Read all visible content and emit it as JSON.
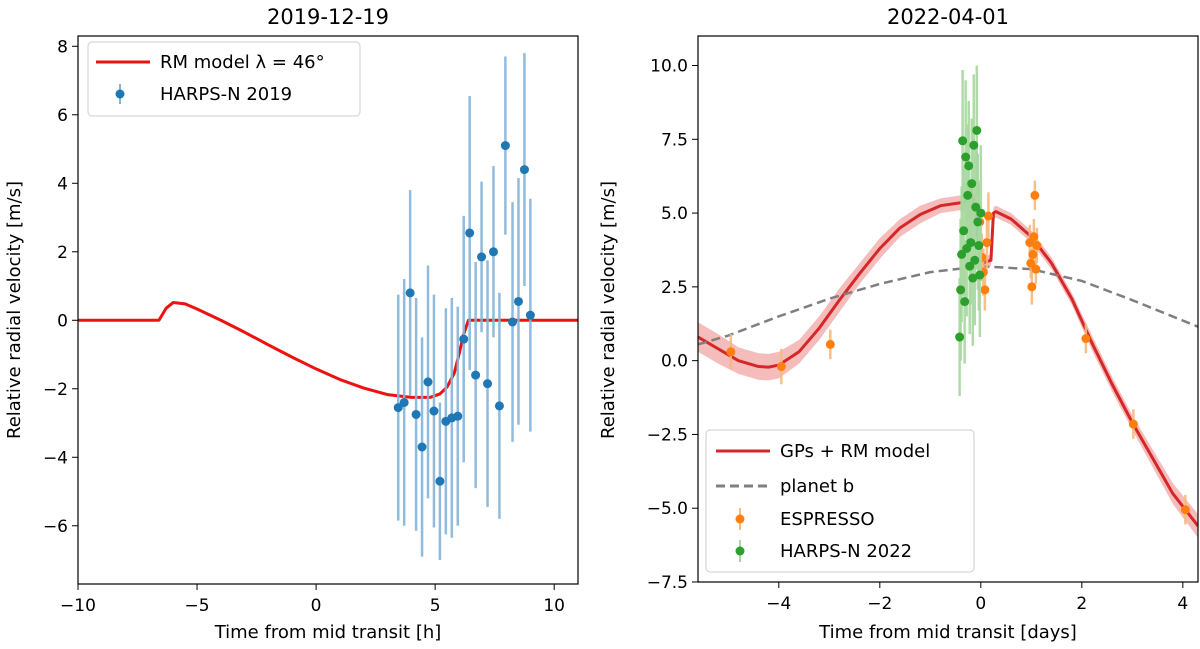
{
  "chart_data": [
    {
      "type": "scatter",
      "title": "2019-12-19",
      "xlabel": "Time from mid transit [h]",
      "ylabel": "Relative radial velocity [m/s]",
      "xlim": [
        -10,
        11
      ],
      "ylim": [
        -7.7,
        8.3
      ],
      "xticks": [
        -10,
        -5,
        0,
        5,
        10
      ],
      "yticks": [
        -6,
        -4,
        -2,
        0,
        2,
        4,
        6,
        8
      ],
      "grid": false,
      "legend_position": "top-left",
      "legend": [
        {
          "label": "RM model λ = 46°",
          "kind": "line",
          "color": "#ee1111"
        },
        {
          "label": "HARPS-N 2019",
          "kind": "errorbar",
          "color": "#1f77b4"
        }
      ],
      "series": [
        {
          "name": "RM model λ = 46°",
          "kind": "line",
          "color": "#ee1111",
          "x": [
            -10,
            -6.6,
            -6.3,
            -6.0,
            -5.5,
            -5.0,
            -4.0,
            -3.0,
            -2.0,
            -1.0,
            0.0,
            1.0,
            2.0,
            3.0,
            4.0,
            4.8,
            5.2,
            5.5,
            5.8,
            6.0,
            6.2,
            6.4,
            6.6,
            11
          ],
          "y": [
            0,
            0,
            0.35,
            0.52,
            0.48,
            0.33,
            0.0,
            -0.35,
            -0.72,
            -1.08,
            -1.42,
            -1.73,
            -1.98,
            -2.17,
            -2.25,
            -2.25,
            -2.15,
            -1.95,
            -1.55,
            -1.0,
            -0.4,
            0.0,
            0.0,
            0
          ]
        },
        {
          "name": "HARPS-N 2019",
          "kind": "errorbar",
          "color": "#1f77b4",
          "errcolor": "#86b4d9",
          "x": [
            3.45,
            3.7,
            3.95,
            4.2,
            4.45,
            4.7,
            4.95,
            5.2,
            5.45,
            5.7,
            5.95,
            6.2,
            6.45,
            6.7,
            6.95,
            7.2,
            7.45,
            7.7,
            7.95,
            8.25,
            8.5,
            8.75,
            9.0
          ],
          "y": [
            -2.55,
            -2.4,
            0.8,
            -2.75,
            -3.7,
            -1.8,
            -2.65,
            -4.7,
            -2.95,
            -2.85,
            -2.8,
            -0.55,
            2.55,
            -1.6,
            1.85,
            -1.85,
            2.0,
            -2.5,
            5.1,
            -0.05,
            0.55,
            4.4,
            0.15
          ],
          "err": [
            3.3,
            3.6,
            3.0,
            3.4,
            3.2,
            3.4,
            3.4,
            2.3,
            3.3,
            3.5,
            3.2,
            3.6,
            4.0,
            3.3,
            2.2,
            3.6,
            2.5,
            3.3,
            2.6,
            3.5,
            3.6,
            3.4,
            3.4
          ]
        }
      ]
    },
    {
      "type": "scatter",
      "title": "2022-04-01",
      "xlabel": "Time from mid transit [days]",
      "ylabel": "Relative radial velocity [m/s]",
      "xlim": [
        -5.6,
        4.3
      ],
      "ylim": [
        -7.5,
        11.0
      ],
      "xticks": [
        -4,
        -2,
        0,
        2,
        4
      ],
      "yticks": [
        -7.5,
        -5.0,
        -2.5,
        0.0,
        2.5,
        5.0,
        7.5,
        10.0
      ],
      "ytick_labels": [
        "−7.5",
        "−5.0",
        "−2.5",
        "0.0",
        "2.5",
        "5.0",
        "7.5",
        "10.0"
      ],
      "grid": false,
      "legend_position": "bottom-left",
      "legend": [
        {
          "label": "GPs + RM model",
          "kind": "line",
          "color": "#d62728"
        },
        {
          "label": "planet b",
          "kind": "dashed",
          "color": "#7f7f7f"
        },
        {
          "label": "ESPRESSO",
          "kind": "errorbar",
          "color": "#ff7f0e"
        },
        {
          "label": "HARPS-N 2022",
          "kind": "errorbar",
          "color": "#2ca02c"
        }
      ],
      "series": [
        {
          "name": "GPs + RM model",
          "kind": "line",
          "color": "#d62728",
          "band_color": "#f2a6a6",
          "x": [
            -5.6,
            -5.2,
            -4.8,
            -4.4,
            -4.2,
            -4.0,
            -3.6,
            -3.2,
            -2.8,
            -2.4,
            -2.0,
            -1.6,
            -1.2,
            -0.8,
            -0.4,
            -0.25,
            -0.2,
            -0.15,
            -0.1,
            -0.05,
            0.0,
            0.05,
            0.1,
            0.2,
            0.25,
            0.3,
            0.6,
            1.0,
            1.4,
            1.8,
            2.2,
            2.6,
            3.0,
            3.4,
            3.8,
            4.3
          ],
          "y": [
            0.8,
            0.4,
            0.0,
            -0.2,
            -0.22,
            -0.15,
            0.3,
            1.1,
            2.05,
            2.95,
            3.8,
            4.5,
            4.95,
            5.25,
            5.35,
            5.4,
            5.9,
            5.3,
            4.8,
            4.0,
            3.1,
            3.3,
            3.35,
            3.4,
            5.0,
            5.05,
            4.8,
            4.2,
            3.3,
            2.1,
            0.6,
            -0.8,
            -2.1,
            -3.3,
            -4.5,
            -5.6
          ],
          "band": [
            0.5,
            0.5,
            0.45,
            0.45,
            0.45,
            0.45,
            0.4,
            0.4,
            0.4,
            0.35,
            0.35,
            0.3,
            0.3,
            0.25,
            0.25,
            0.2,
            0.2,
            0.2,
            0.2,
            0.2,
            0.2,
            0.2,
            0.2,
            0.2,
            0.2,
            0.2,
            0.2,
            0.2,
            0.2,
            0.2,
            0.25,
            0.25,
            0.25,
            0.3,
            0.35,
            0.4
          ]
        },
        {
          "name": "planet b",
          "kind": "dashed",
          "color": "#7f7f7f",
          "x": [
            -5.6,
            -5.0,
            -4.0,
            -3.0,
            -2.0,
            -1.0,
            0.0,
            1.0,
            2.0,
            3.0,
            4.3
          ],
          "y": [
            0.55,
            0.85,
            1.5,
            2.1,
            2.6,
            3.0,
            3.2,
            3.1,
            2.7,
            2.05,
            1.15
          ]
        },
        {
          "name": "ESPRESSO",
          "kind": "errorbar",
          "color": "#ff7f0e",
          "errcolor": "#f7b97f",
          "x": [
            -4.95,
            -3.95,
            -2.98,
            -0.02,
            0.02,
            0.05,
            0.08,
            0.12,
            0.15,
            0.97,
            0.99,
            1.01,
            1.03,
            1.05,
            1.07,
            1.09,
            1.11,
            2.08,
            3.02,
            4.05
          ],
          "y": [
            0.3,
            -0.2,
            0.55,
            4.7,
            3.5,
            3.0,
            2.4,
            4.0,
            4.9,
            4.0,
            3.3,
            2.5,
            3.6,
            4.2,
            5.6,
            3.1,
            3.9,
            0.75,
            -2.15,
            -5.05
          ],
          "err": [
            0.6,
            0.6,
            0.5,
            0.7,
            0.8,
            0.8,
            0.7,
            0.9,
            0.8,
            0.6,
            0.5,
            0.6,
            0.5,
            0.6,
            0.5,
            0.5,
            0.6,
            0.5,
            0.5,
            0.5
          ]
        },
        {
          "name": "HARPS-N 2022",
          "kind": "errorbar",
          "color": "#2ca02c",
          "errcolor": "#a8d8a0",
          "x": [
            -0.42,
            -0.4,
            -0.38,
            -0.36,
            -0.34,
            -0.32,
            -0.3,
            -0.28,
            -0.26,
            -0.24,
            -0.22,
            -0.2,
            -0.18,
            -0.16,
            -0.14,
            -0.12,
            -0.1,
            -0.08,
            -0.06,
            -0.04,
            -0.02,
            0.0
          ],
          "y": [
            0.8,
            2.4,
            3.6,
            7.45,
            4.4,
            2.0,
            6.9,
            3.8,
            5.6,
            6.6,
            3.2,
            4.0,
            6.0,
            2.8,
            7.3,
            3.4,
            5.2,
            7.8,
            4.7,
            3.9,
            2.9,
            5.0
          ],
          "err": [
            2.0,
            2.4,
            2.3,
            2.4,
            2.2,
            2.1,
            2.6,
            2.3,
            2.4,
            2.2,
            2.3,
            2.1,
            2.2,
            2.3,
            2.4,
            2.2,
            2.1,
            2.2,
            2.3,
            2.2,
            2.1,
            2.3
          ]
        }
      ]
    }
  ]
}
